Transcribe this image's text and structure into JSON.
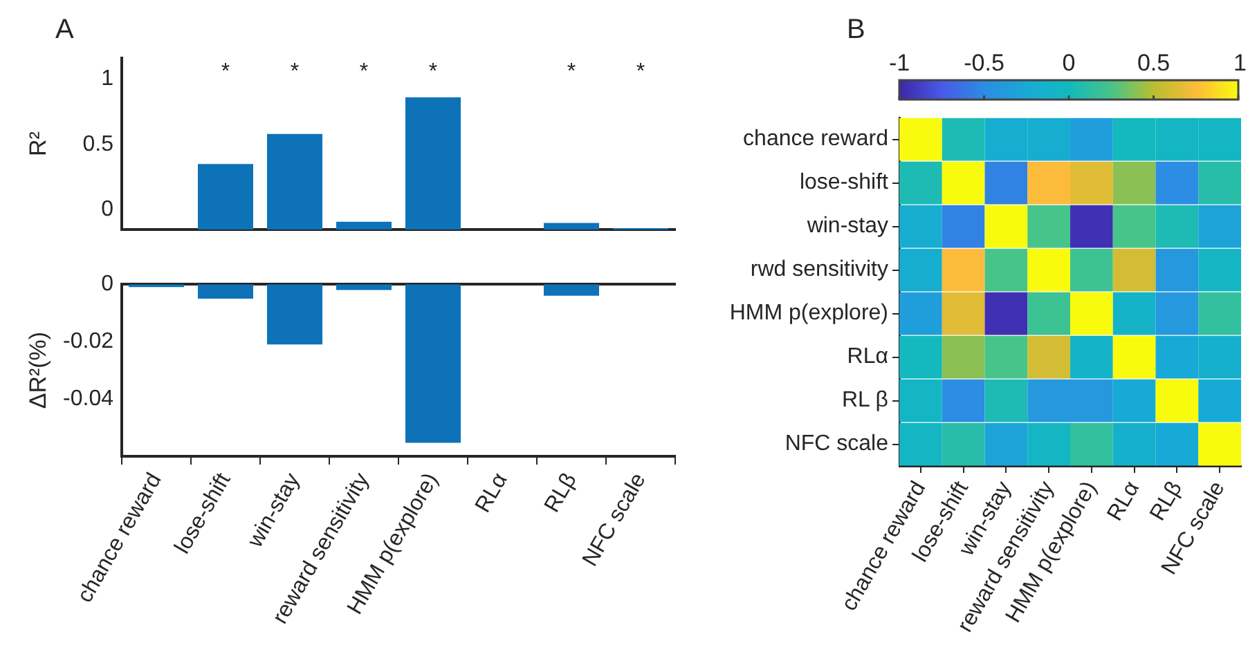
{
  "chart_data": [
    {
      "type": "bar",
      "title": "A",
      "ylabel": "R²",
      "categories": [
        null,
        null,
        null,
        null,
        null,
        null,
        null,
        null
      ],
      "base": [
        null,
        -0.15,
        -0.15,
        -0.15,
        -0.15,
        null,
        -0.15,
        -0.15
      ],
      "values": [
        null,
        0.5,
        0.73,
        0.06,
        1.01,
        null,
        0.05,
        0.01
      ],
      "color": "#0e72b9",
      "ylim": [
        -0.15,
        1.16
      ],
      "yticks": [
        0,
        0.5,
        1
      ],
      "tick_labels": "y",
      "annotations": [
        "*",
        "*",
        "*",
        "*",
        "*",
        "*"
      ]
    },
    {
      "type": "bar",
      "ylabel": "ΔR²(%)",
      "categories": [
        "chance reward",
        "lose-shift",
        "win-stay",
        "reward sensitivity",
        "HMM p(explore)",
        "RLα",
        "RLβ",
        "NFC scale"
      ],
      "values": [
        -0.001,
        -0.005,
        -0.021,
        -0.002,
        -0.0553,
        0,
        -0.004,
        0
      ],
      "color": "#0e72b9",
      "ylim": [
        -0.06,
        0
      ],
      "yticks": [
        -0.04,
        -0.02,
        0
      ]
    },
    {
      "type": "heatmap",
      "title": "B",
      "categories": [
        "chance reward",
        "lose-shift",
        "win-stay",
        "reward sensitivity",
        "HMM p(explore)",
        "RLα",
        "RLβ",
        "NFC scale"
      ],
      "y_categories": [
        "chance reward",
        "lose-shift",
        "win-stay",
        "rwd sensitivity",
        "HMM p(explore)",
        "RLα",
        "RL β",
        "NFC scale"
      ],
      "cells": [
        [
          1,
          0.05,
          -0.2,
          -0.2,
          -0.35,
          0,
          -0.05,
          -0.05
        ],
        [
          0.05,
          1,
          -0.55,
          0.75,
          0.65,
          0.4,
          -0.5,
          0.1
        ],
        [
          -0.2,
          -0.55,
          1,
          0.25,
          -0.95,
          0.25,
          0.05,
          -0.3
        ],
        [
          -0.2,
          0.75,
          0.25,
          1,
          0.2,
          0.6,
          -0.4,
          -0.05
        ],
        [
          -0.35,
          0.65,
          -0.95,
          0.2,
          1,
          -0.1,
          -0.4,
          0.15
        ],
        [
          0,
          0.4,
          0.25,
          0.6,
          -0.1,
          1,
          -0.25,
          -0.15
        ],
        [
          -0.05,
          -0.5,
          0.05,
          -0.4,
          -0.4,
          -0.25,
          1,
          -0.25
        ],
        [
          -0.05,
          0.1,
          -0.3,
          -0.05,
          0.15,
          -0.15,
          -0.25,
          1
        ]
      ],
      "clim": [
        -1,
        1
      ],
      "cticks": [
        -1,
        -0.5,
        0,
        0.5,
        1
      ]
    }
  ]
}
